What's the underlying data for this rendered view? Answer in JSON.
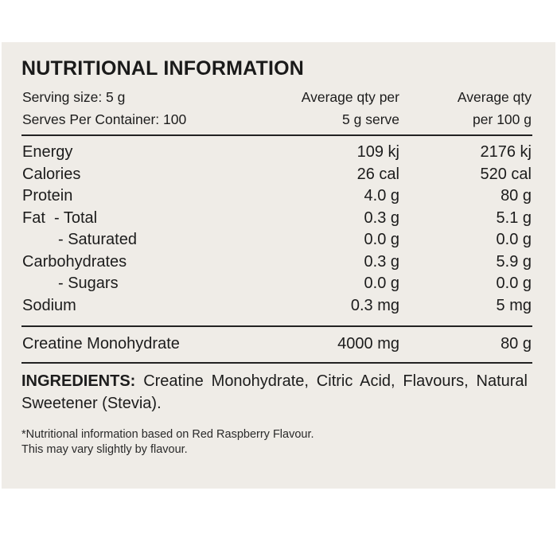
{
  "title": "NUTRITIONAL INFORMATION",
  "header": {
    "serving_size": "Serving size: 5 g",
    "serves_per_container": "Serves Per Container: 100",
    "col_serve_line1": "Average qty per",
    "col_serve_line2": "5 g serve",
    "col_100g_line1": "Average qty",
    "col_100g_line2": "per 100 g"
  },
  "nutrients": [
    {
      "label": "Energy",
      "per_serve": "109 kj",
      "per_100g": "2176 kj"
    },
    {
      "label": "Calories",
      "per_serve": "26 cal",
      "per_100g": "520 cal"
    },
    {
      "label": "Protein",
      "per_serve": "4.0 g",
      "per_100g": "80 g"
    },
    {
      "label": "Fat  - Total",
      "per_serve": "0.3 g",
      "per_100g": "5.1 g"
    },
    {
      "label": "- Saturated",
      "per_serve": "0.0 g",
      "per_100g": "0.0 g"
    },
    {
      "label": "Carbohydrates",
      "per_serve": "0.3 g",
      "per_100g": "5.9 g"
    },
    {
      "label": "- Sugars",
      "per_serve": "0.0 g",
      "per_100g": "0.0 g"
    },
    {
      "label": "Sodium",
      "per_serve": "0.3 mg",
      "per_100g": "5 mg"
    }
  ],
  "creatine": {
    "label": "Creatine Monohydrate",
    "per_serve": "4000 mg",
    "per_100g": "80 g"
  },
  "ingredients": {
    "heading": "INGREDIENTS:",
    "text": "Creatine Monohydrate, Citric Acid, Flavours, Natural Sweetener (Stevia)."
  },
  "footnote": {
    "line1": "*Nutritional information based on Red Raspberry Flavour.",
    "line2": "This may vary slightly by flavour."
  }
}
